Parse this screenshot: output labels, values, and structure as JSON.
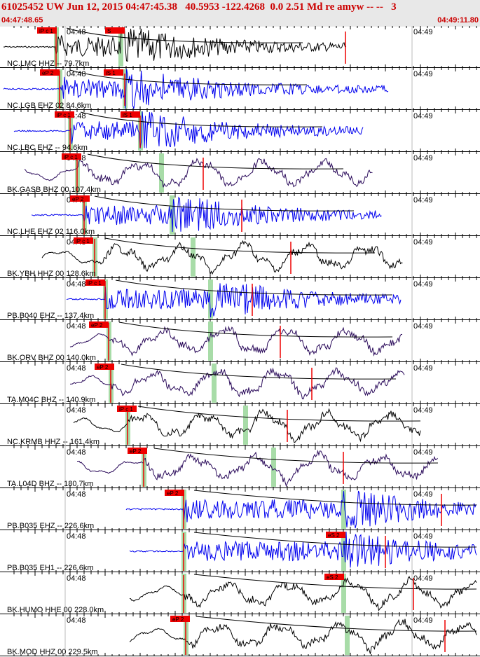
{
  "header": {
    "title": "61025452 UW Jun 12, 2015 04:47:45.38   40.5953 -122.4268  0.0 2.51 Md re amyw -- --   3",
    "time_start": "04:47:48.65",
    "time_end": "04:49:11.80"
  },
  "time_labels": {
    "minute_a": "04:48",
    "minute_b": "04:49"
  },
  "colors": {
    "pick": "#ee0000",
    "trace_blue": "#0000ee",
    "trace_black": "#000000",
    "trace_purple": "#2a0a5a",
    "marker_green": "#a8dca8",
    "decay_line": "#000000"
  },
  "traces": [
    {
      "label": "NC.LMC HHZ -- 79.7km",
      "color": "black",
      "picks": [
        "iP c 1",
        "S"
      ]
    },
    {
      "label": "NC.LGB EHZ 02 84.6km",
      "color": "blue",
      "picks": [
        "eP 2",
        "iS 1"
      ]
    },
    {
      "label": "NC.LBC EHZ -- 94.6km",
      "color": "blue",
      "picks": [
        "iP c 1",
        "iS 1"
      ]
    },
    {
      "label": "BK.GASB BHZ 00 107.4km",
      "color": "purple",
      "picks": [
        "iP c 1"
      ]
    },
    {
      "label": "NC.LHE EHZ 02 116.0km",
      "color": "blue",
      "picks": [
        "eP 2"
      ]
    },
    {
      "label": "BK.YBH HHZ 00 128.6km",
      "color": "black",
      "picks": [
        "iP c 1"
      ]
    },
    {
      "label": "PB.B040 EHZ -- 137.4km",
      "color": "blue",
      "picks": [
        "iP c 1"
      ]
    },
    {
      "label": "BK.ORV BHZ 00 140.0km",
      "color": "purple",
      "picks": [
        "eP 2"
      ]
    },
    {
      "label": "TA.M04C BHZ -- 140.9km",
      "color": "purple",
      "picks": [
        "eP 2"
      ]
    },
    {
      "label": "NC.KRMB HHZ -- 161.4km",
      "color": "black",
      "picks": [
        "iP c 1"
      ]
    },
    {
      "label": "TA.L04D BHZ -- 180.7km",
      "color": "purple",
      "picks": [
        "eP 2"
      ]
    },
    {
      "label": "PB.B035 EHZ -- 226.6km",
      "color": "blue",
      "picks": [
        "eP 2"
      ]
    },
    {
      "label": "PB.B035 EH1 -- 226.6km",
      "color": "blue",
      "picks": [
        "eS 2"
      ]
    },
    {
      "label": "BK.HUMO HHE 00 228.0km",
      "color": "black",
      "picks": [
        "eS 2"
      ]
    },
    {
      "label": "BK.MOD HHZ 00 229.5km",
      "color": "black",
      "picks": [
        "eP 2"
      ]
    }
  ]
}
